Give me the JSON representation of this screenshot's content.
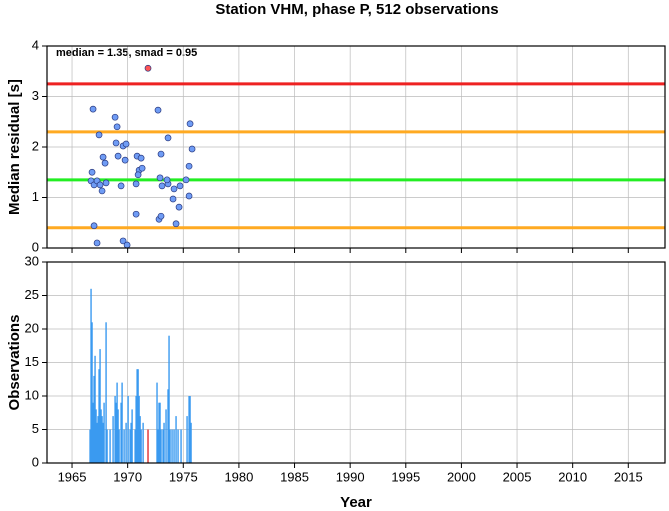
{
  "chart_data": [
    {
      "type": "scatter",
      "title": "Station VHM, phase P, 512 observations",
      "annotation": "median = 1.35, smad = 0.95",
      "ylabel": "Median residual [s]",
      "xlim": [
        1962.75,
        2018.3
      ],
      "xticks": [
        1965,
        1970,
        1975,
        1980,
        1985,
        1990,
        1995,
        2000,
        2005,
        2010,
        2015
      ],
      "ylim": [
        0,
        4
      ],
      "yticks": [
        0,
        1,
        2,
        3,
        4
      ],
      "grid": true,
      "hlines": [
        {
          "value": 3.25,
          "color": "#ee2222"
        },
        {
          "value": 2.3,
          "color": "#ffaa22"
        },
        {
          "value": 1.35,
          "color": "#22ee22"
        },
        {
          "value": 0.4,
          "color": "#ffaa22"
        }
      ],
      "series": [
        {
          "color": "#6f9cf5",
          "x": [
            1966.89,
            1966.8,
            1966.71,
            1966.98,
            1967.25,
            1967.52,
            1967.7,
            1968.06,
            1967.79,
            1967.97,
            1967.43,
            1966.98,
            1967.25,
            1968.87,
            1969.05,
            1968.96,
            1969.14,
            1969.41,
            1969.59,
            1969.86,
            1969.59,
            1969.95,
            1969.77,
            1970.76,
            1970.76,
            1970.85,
            1971.21,
            1971.03,
            1971.3,
            1970.94,
            1972.73,
            1972.91,
            1973.0,
            1973.09,
            1973.63,
            1973.54,
            1973.63,
            1974.17,
            1974.08,
            1974.62,
            1974.35,
            1972.82,
            1973.0,
            1975.25,
            1975.52,
            1975.61,
            1975.79,
            1975.52,
            1974.71
          ],
          "values": [
            2.75,
            1.5,
            1.33,
            1.25,
            1.33,
            1.25,
            1.13,
            1.29,
            1.8,
            1.68,
            2.24,
            0.44,
            0.1,
            2.59,
            2.4,
            2.08,
            1.82,
            1.23,
            2.02,
            2.06,
            0.14,
            0.06,
            1.74,
            0.67,
            1.27,
            1.82,
            1.78,
            1.54,
            1.58,
            1.45,
            2.73,
            1.39,
            1.86,
            1.23,
            1.27,
            1.35,
            2.18,
            1.17,
            0.97,
            0.81,
            0.48,
            0.57,
            0.63,
            1.35,
            1.62,
            2.46,
            1.96,
            1.03,
            1.23
          ]
        },
        {
          "color": "#ff5555",
          "x": [
            1971.83
          ],
          "values": [
            3.56
          ]
        }
      ]
    },
    {
      "type": "bar",
      "ylabel": "Observations",
      "xlabel": "Year",
      "xlim": [
        1962.75,
        2018.3
      ],
      "xticks": [
        1965,
        1970,
        1975,
        1980,
        1985,
        1990,
        1995,
        2000,
        2005,
        2010,
        2015
      ],
      "ylim": [
        0,
        30
      ],
      "yticks": [
        0,
        5,
        10,
        15,
        20,
        25,
        30
      ],
      "grid": true,
      "series": [
        {
          "color": "#3a9af0",
          "x": [
            1966.62,
            1966.71,
            1966.8,
            1966.89,
            1966.98,
            1967.07,
            1967.16,
            1967.25,
            1967.34,
            1967.43,
            1967.52,
            1967.61,
            1967.7,
            1967.79,
            1967.88,
            1968.06,
            1968.15,
            1968.42,
            1968.69,
            1968.87,
            1968.96,
            1969.05,
            1969.14,
            1969.23,
            1969.41,
            1969.5,
            1969.68,
            1969.86,
            1970.04,
            1970.22,
            1970.31,
            1970.4,
            1970.67,
            1970.76,
            1970.85,
            1970.94,
            1971.03,
            1971.12,
            1971.21,
            1971.39,
            1972.64,
            1972.73,
            1972.82,
            1972.91,
            1973.0,
            1973.18,
            1973.27,
            1973.45,
            1973.63,
            1973.72,
            1973.81,
            1973.99,
            1974.17,
            1974.35,
            1974.53,
            1974.8,
            1975.34,
            1975.52,
            1975.61,
            1975.7
          ],
          "values": [
            5,
            26,
            21,
            9,
            13,
            16,
            8,
            6,
            7,
            14,
            17,
            8,
            7,
            6,
            9,
            21,
            5,
            5,
            7,
            10,
            9,
            12,
            8,
            5,
            9,
            12,
            5,
            6,
            10,
            5,
            6,
            8,
            5,
            10,
            14,
            14,
            10,
            7,
            5,
            6,
            12,
            5,
            9,
            9,
            5,
            5,
            6,
            8,
            11,
            19,
            5,
            5,
            5,
            7,
            5,
            5,
            7,
            10,
            10,
            6
          ]
        },
        {
          "color": "#e03030",
          "x": [
            1971.83
          ],
          "values": [
            5
          ]
        }
      ]
    }
  ]
}
